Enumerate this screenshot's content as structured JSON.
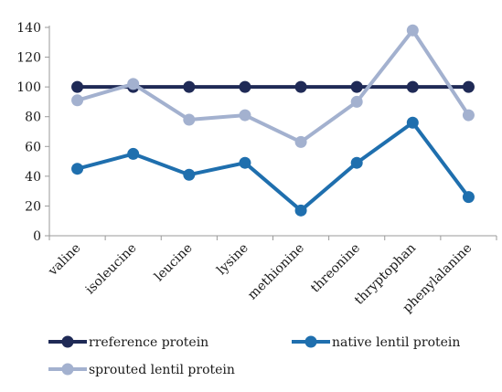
{
  "chart_data": {
    "type": "line",
    "title": "",
    "xlabel": "",
    "ylabel": "",
    "ylim": [
      0,
      140
    ],
    "yticks": [
      0,
      20,
      40,
      60,
      80,
      100,
      120,
      140
    ],
    "grid": false,
    "legend_position": "bottom",
    "categories": [
      "valine",
      "isoleucine",
      "leucine",
      "lysine",
      "methionine",
      "threonine",
      "thryptophan",
      "phenylalanine"
    ],
    "series": [
      {
        "name": "rreference protein",
        "color": "#1f2a56",
        "values": [
          100,
          100,
          100,
          100,
          100,
          100,
          100,
          100
        ]
      },
      {
        "name": "native lentil protein",
        "color": "#1f6fae",
        "values": [
          45,
          55,
          41,
          49,
          17,
          49,
          76,
          26
        ]
      },
      {
        "name": "sprouted lentil protein",
        "color": "#a3b1cf",
        "values": [
          91,
          102,
          78,
          81,
          63,
          90,
          138,
          81
        ]
      }
    ]
  }
}
